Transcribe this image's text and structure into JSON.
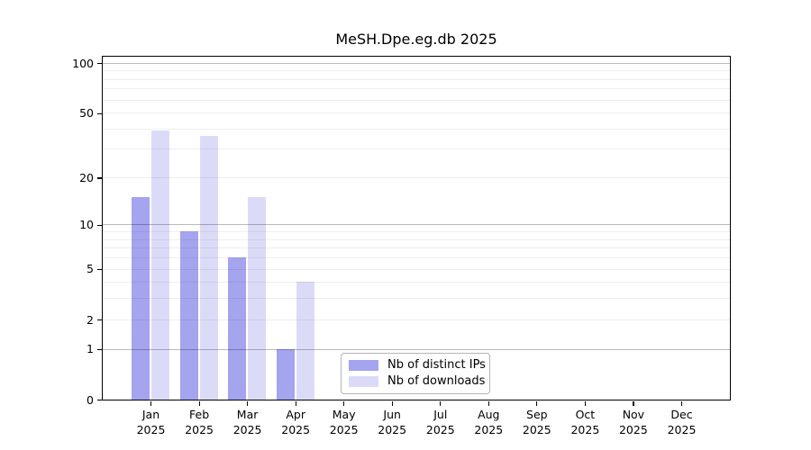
{
  "title": "MeSH.Dpe.eg.db 2025",
  "chart_data": {
    "type": "bar",
    "title": "MeSH.Dpe.eg.db 2025",
    "categories": [
      "Jan",
      "Feb",
      "Mar",
      "Apr",
      "May",
      "Jun",
      "Jul",
      "Aug",
      "Sep",
      "Oct",
      "Nov",
      "Dec"
    ],
    "year_label": "2025",
    "series": [
      {
        "name": "Nb of distinct IPs",
        "color": "#a4a4ef",
        "values": [
          15,
          9,
          6,
          1,
          0,
          0,
          0,
          0,
          0,
          0,
          0,
          0
        ]
      },
      {
        "name": "Nb of downloads",
        "color": "#dbdbf8",
        "values": [
          39,
          36,
          15,
          4,
          0,
          0,
          0,
          0,
          0,
          0,
          0,
          0
        ]
      }
    ],
    "y_scale": "log1p",
    "y_ticks": [
      100,
      50,
      20,
      10,
      5,
      2,
      1,
      0
    ],
    "major_gridlines": [
      1,
      10,
      100
    ],
    "minor_gridlines": [
      2,
      3,
      4,
      5,
      6,
      7,
      8,
      9,
      20,
      30,
      40,
      50,
      60,
      70,
      80,
      90
    ],
    "ylim": [
      0,
      110
    ],
    "grid": true,
    "legend_position": "lower center",
    "background_color": "#ffffff",
    "axis_color": "#000000"
  }
}
